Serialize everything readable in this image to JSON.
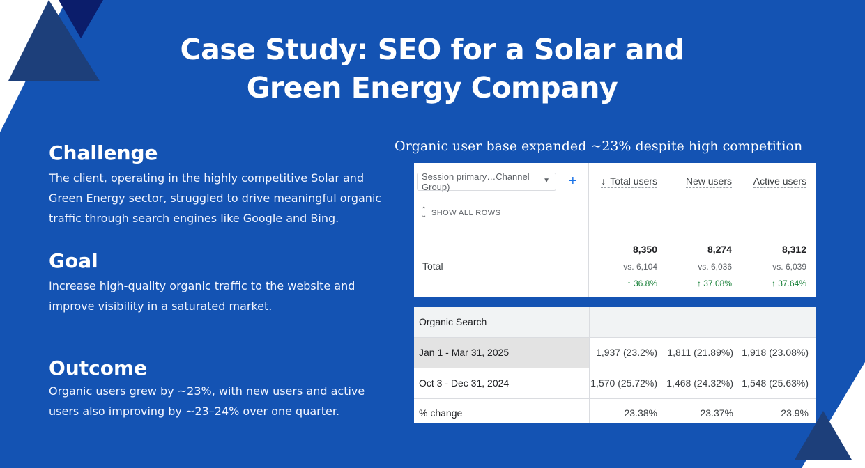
{
  "colors": {
    "background": "#1453b3",
    "accent_dark": "#1d3f7a",
    "accent_navy": "#0b1d6b",
    "positive": "#188038"
  },
  "title": {
    "line1": "Case Study: SEO for a Solar and",
    "line2": "Green Energy Company"
  },
  "sections": {
    "challenge": {
      "heading": "Challenge",
      "body": "The client, operating in the highly competitive Solar and Green Energy sector, struggled to drive meaningful organic traffic through search engines like Google and Bing."
    },
    "goal": {
      "heading": "Goal",
      "body": "Increase high-quality organic traffic to the website and improve visibility in a saturated market."
    },
    "outcome": {
      "heading": "Outcome",
      "body": "Organic users grew by ~23%, with new users and active users also improving by ~23–24% over one quarter."
    }
  },
  "report": {
    "caption": "Organic user base expanded ~23% despite high competition",
    "dimension_select": "Session primary…Channel Group)",
    "add_icon": "+",
    "show_all_rows": "SHOW ALL ROWS",
    "sort_icon": "arrow-down-icon",
    "total_label": "Total",
    "metrics": [
      {
        "name": "Total users",
        "value": "8,350",
        "vs": "vs. 6,104",
        "change": "↑ 36.8%"
      },
      {
        "name": "New users",
        "value": "8,274",
        "vs": "vs. 6,036",
        "change": "↑ 37.08%"
      },
      {
        "name": "Active users",
        "value": "8,312",
        "vs": "vs. 6,039",
        "change": "↑ 37.64%"
      }
    ],
    "segment_label": "Organic Search",
    "rows": [
      {
        "label": "Jan 1 - Mar 31, 2025",
        "values": [
          "1,937 (23.2%)",
          "1,811 (21.89%)",
          "1,918 (23.08%)"
        ]
      },
      {
        "label": "Oct 3 - Dec 31, 2024",
        "values": [
          "1,570 (25.72%)",
          "1,468 (24.32%)",
          "1,548 (25.63%)"
        ]
      },
      {
        "label": "% change",
        "values": [
          "23.38%",
          "23.37%",
          "23.9%"
        ]
      }
    ]
  }
}
